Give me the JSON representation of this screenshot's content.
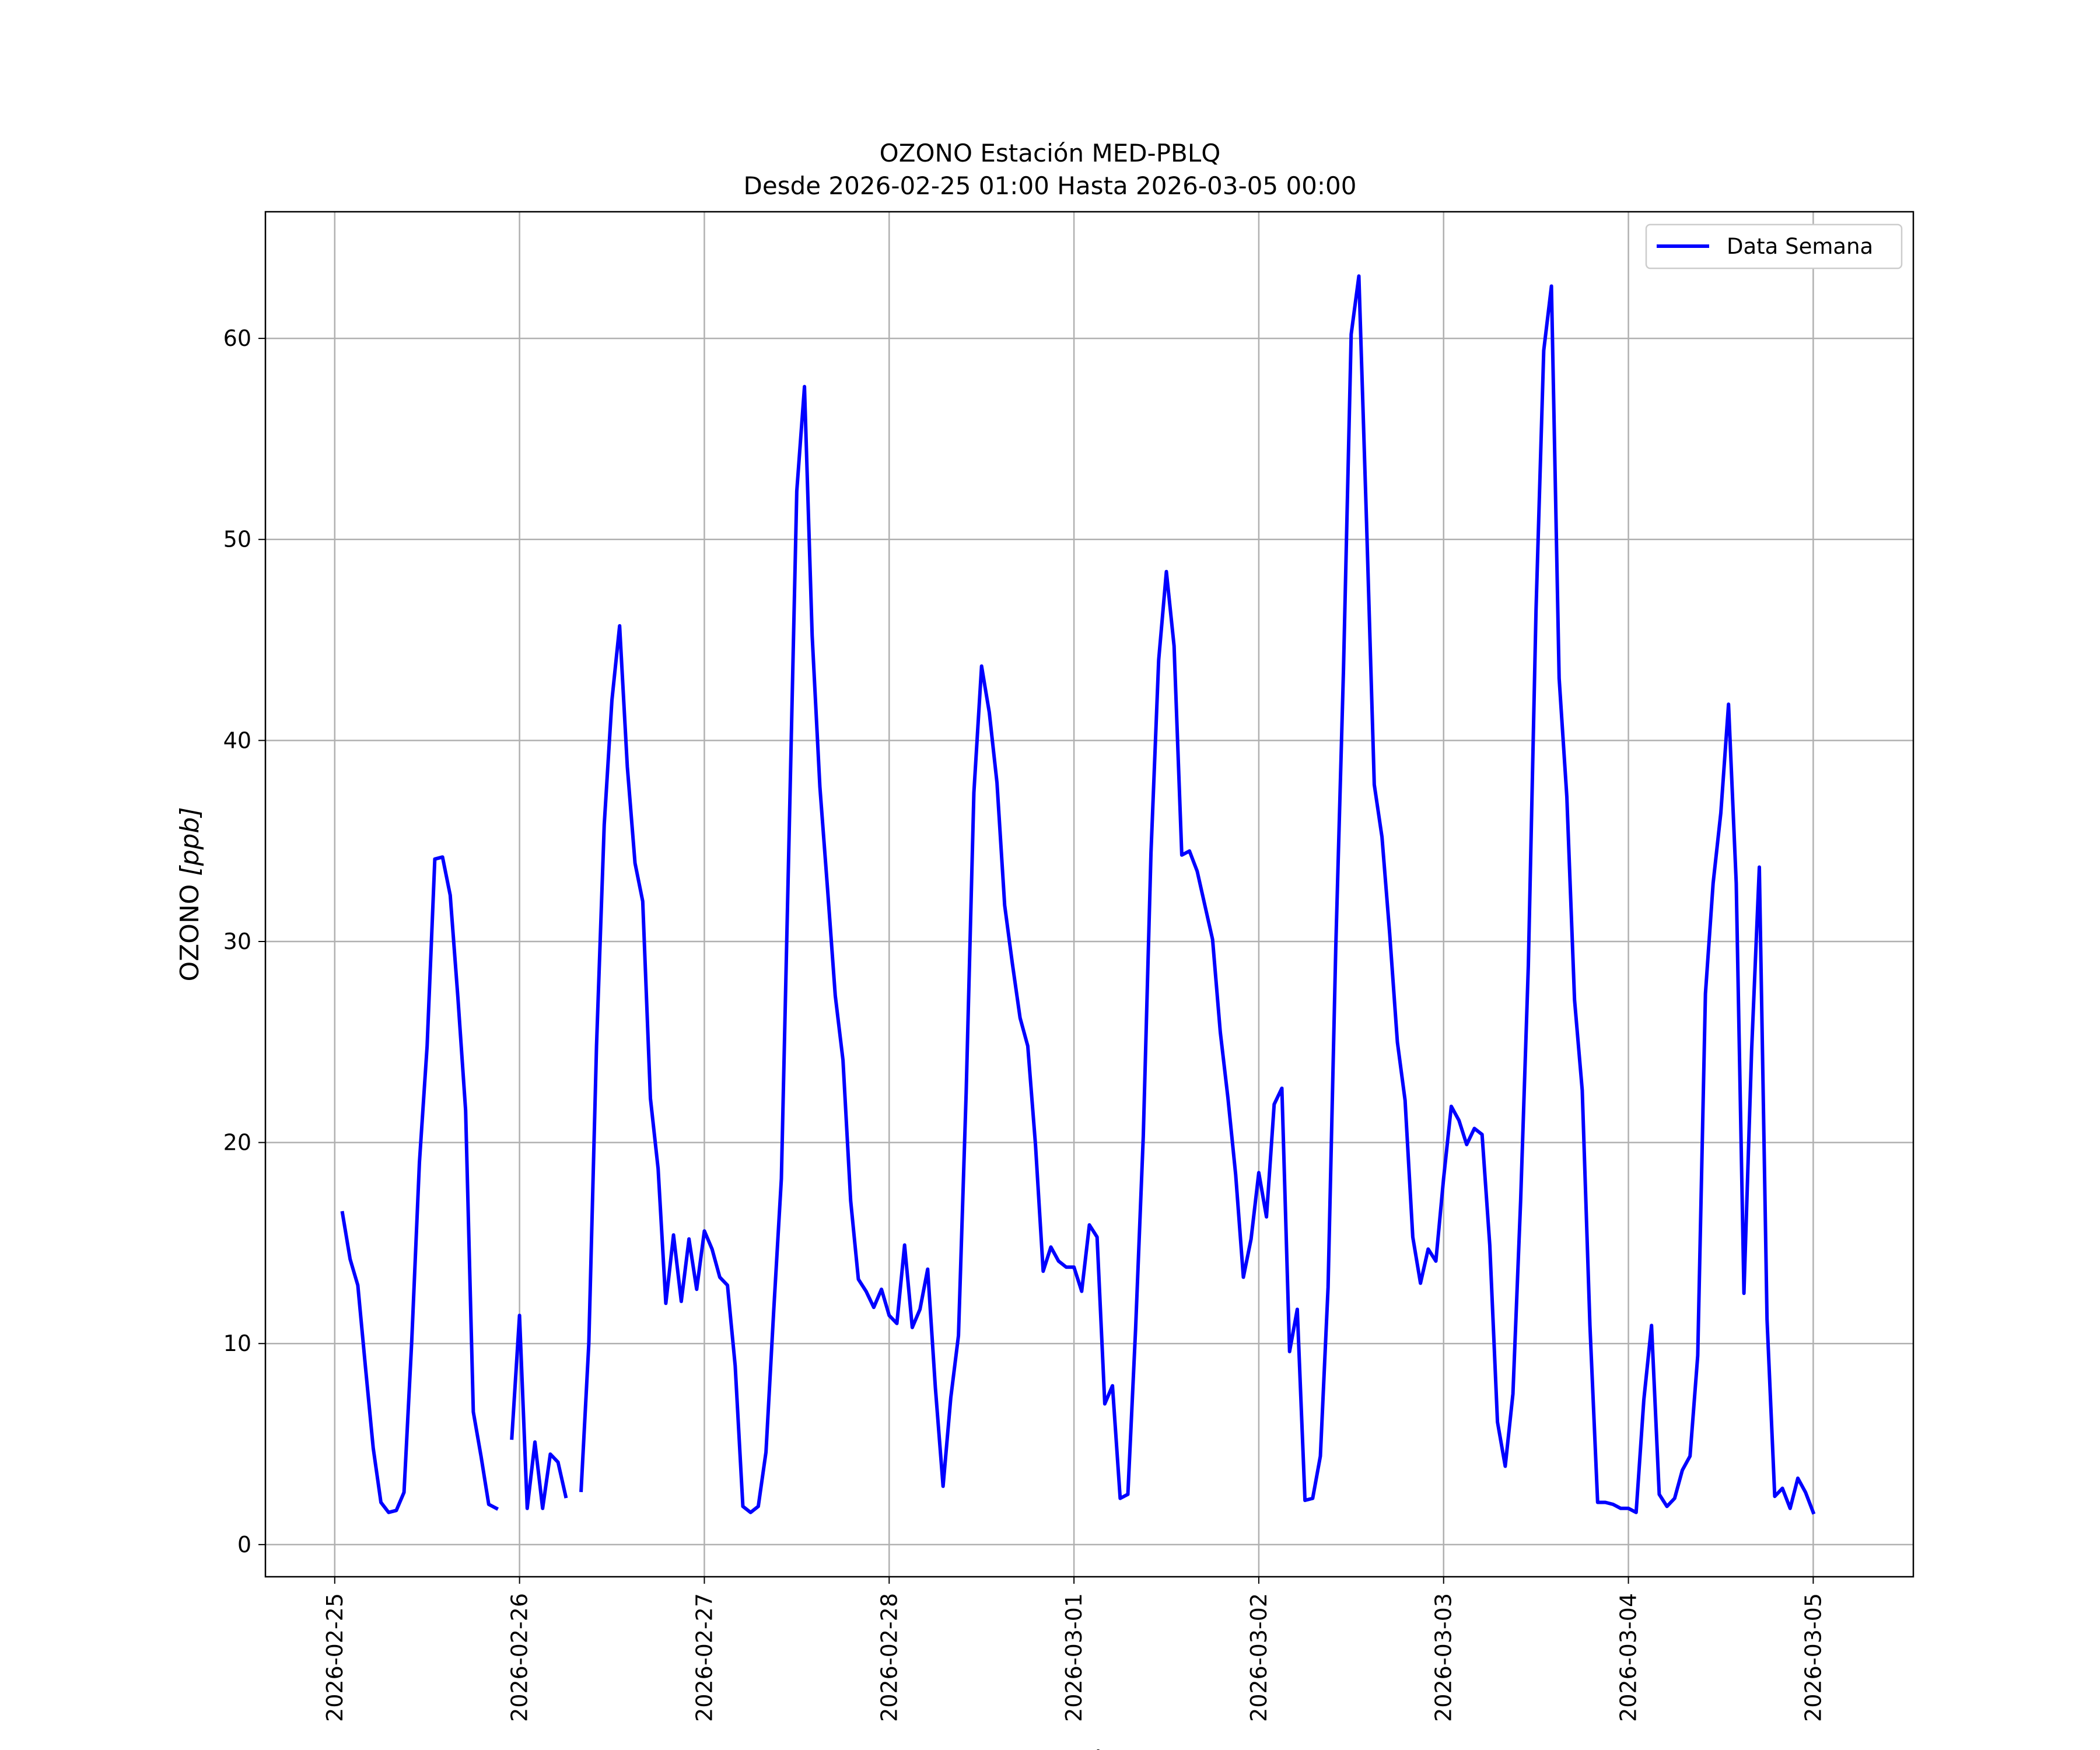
{
  "chart_data": {
    "type": "line",
    "title": "OZONO Estación MED-PBLQ",
    "subtitle": "Desde 2026-02-25 01:00 Hasta 2026-03-05 00:00",
    "xlabel": "Fecha",
    "ylabel": "OZONO [ppb]",
    "ylabel_text": "OZONO ",
    "ylabel_unit": "[ppb]",
    "xlim": [
      "2026-02-24 15:00",
      "2026-03-05 13:00"
    ],
    "ylim": [
      -1.6,
      66.3
    ],
    "x_ticks": [
      "2026-02-25",
      "2026-02-26",
      "2026-02-27",
      "2026-02-28",
      "2026-03-01",
      "2026-03-02",
      "2026-03-03",
      "2026-03-04",
      "2026-03-05"
    ],
    "y_ticks": [
      0,
      10,
      20,
      30,
      40,
      50,
      60
    ],
    "grid": true,
    "legend_position": "top-right",
    "color": "#0000ff",
    "series": [
      {
        "name": "Data Semana",
        "segments": [
          {
            "start": "2026-02-25 01:00",
            "step_hours": 1,
            "values": [
              16.5,
              14.2,
              12.9,
              8.8,
              4.8,
              2.1,
              1.6,
              1.7,
              2.6,
              10.1,
              19.0,
              24.8,
              34.1,
              34.2,
              32.3,
              27.2,
              21.6,
              6.6,
              4.4,
              2.0,
              1.8
            ]
          },
          {
            "start": "2026-02-25 23:00",
            "step_hours": 1,
            "values": [
              5.3,
              11.4,
              1.8,
              5.1,
              1.8,
              4.5,
              4.1,
              2.4
            ]
          },
          {
            "start": "2026-02-26 08:00",
            "step_hours": 1,
            "values": [
              2.7,
              10.0,
              24.8,
              35.8,
              42.0,
              45.7,
              38.7,
              33.9,
              32.0,
              22.2,
              18.7,
              12.0,
              15.4,
              12.1,
              15.2,
              12.7,
              15.6,
              14.7,
              13.3,
              12.9,
              8.9,
              1.9,
              1.6,
              1.9,
              4.6,
              11.6,
              18.2,
              35.2,
              52.4,
              57.6,
              45.2,
              37.7,
              32.6,
              27.3,
              24.1,
              17.1,
              13.2,
              12.6,
              11.8,
              12.7,
              11.4,
              11.0,
              14.9,
              10.8,
              11.7,
              13.7,
              7.8,
              2.9,
              7.3,
              10.4,
              22.5,
              37.4,
              43.7,
              41.4,
              37.9,
              31.8,
              28.9,
              26.2,
              24.8,
              19.9,
              13.6,
              14.8,
              14.1,
              13.8,
              13.8,
              12.6,
              15.9,
              15.3,
              7.0,
              7.9,
              2.3,
              2.5,
              10.7,
              20.3,
              34.4,
              44.0,
              48.4,
              44.7,
              34.3,
              34.5,
              33.5,
              31.8,
              30.1,
              25.5,
              22.2,
              18.4,
              13.3,
              15.2,
              18.5,
              16.3,
              21.9,
              22.7,
              9.6,
              11.7,
              2.2,
              2.3,
              4.4,
              12.8,
              29.7,
              43.5,
              60.2,
              63.1,
              50.8,
              37.8,
              35.2,
              30.4,
              25.0,
              22.1,
              15.3,
              13.0,
              14.7,
              14.1,
              18.2,
              21.8,
              21.1,
              19.9,
              20.7,
              20.4,
              14.9,
              6.1,
              3.9,
              7.5,
              17.1,
              28.8,
              46.5,
              59.4,
              62.6,
              43.1,
              37.2,
              27.1,
              22.6,
              10.9,
              2.1,
              2.1,
              2.0,
              1.8,
              1.8,
              1.6,
              7.2,
              10.9,
              2.5,
              1.9,
              2.3,
              3.7,
              4.4,
              9.4,
              27.4,
              32.9,
              36.4,
              41.8,
              32.9,
              12.5,
              24.6,
              33.7,
              11.2,
              2.4,
              2.8,
              1.8,
              3.3,
              2.6,
              1.6
            ]
          }
        ]
      }
    ]
  }
}
